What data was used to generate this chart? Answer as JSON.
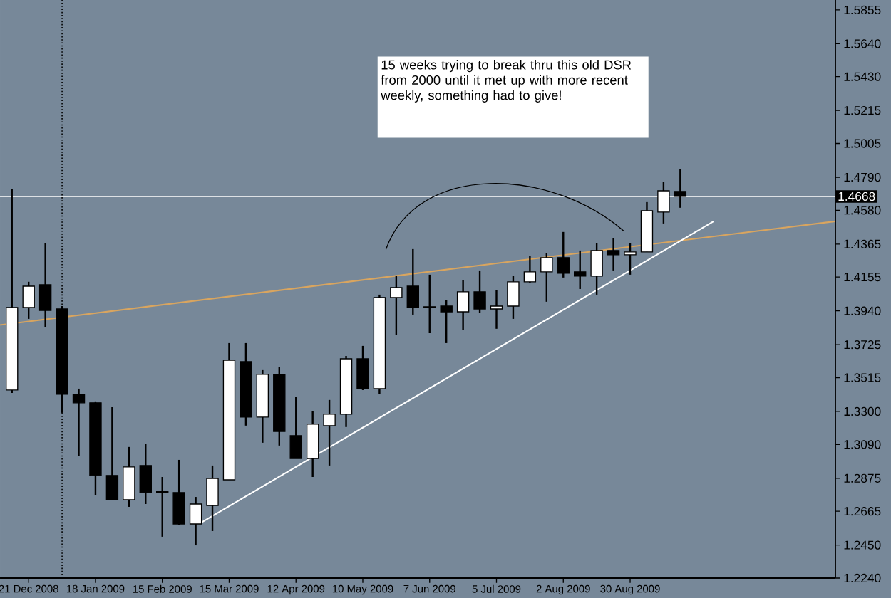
{
  "chart_data": {
    "type": "candlestick",
    "x": [
      "2008-12-14",
      "2008-12-21",
      "2008-12-28",
      "2009-01-04",
      "2009-01-11",
      "2009-01-18",
      "2009-01-25",
      "2009-02-01",
      "2009-02-08",
      "2009-02-15",
      "2009-02-22",
      "2009-03-01",
      "2009-03-08",
      "2009-03-15",
      "2009-03-22",
      "2009-03-29",
      "2009-04-05",
      "2009-04-12",
      "2009-04-19",
      "2009-04-26",
      "2009-05-03",
      "2009-05-10",
      "2009-05-17",
      "2009-05-24",
      "2009-05-31",
      "2009-06-07",
      "2009-06-14",
      "2009-06-21",
      "2009-06-28",
      "2009-07-05",
      "2009-07-12",
      "2009-07-19",
      "2009-07-26",
      "2009-08-02",
      "2009-08-09",
      "2009-08-16",
      "2009-08-23",
      "2009-08-30",
      "2009-09-06",
      "2009-09-13",
      "2009-09-20"
    ],
    "ohlc": [
      [
        1.3436,
        1.4713,
        1.3418,
        1.3961
      ],
      [
        1.3961,
        1.4125,
        1.3889,
        1.4097
      ],
      [
        1.4106,
        1.4369,
        1.3835,
        1.3943
      ],
      [
        1.3952,
        1.397,
        1.3291,
        1.3409
      ],
      [
        1.3409,
        1.3445,
        1.3019,
        1.3355
      ],
      [
        1.3355,
        1.3364,
        1.2766,
        1.2893
      ],
      [
        1.2893,
        1.3327,
        1.2738,
        1.2738
      ],
      [
        1.2738,
        1.3074,
        1.2693,
        1.2947
      ],
      [
        1.2956,
        1.3092,
        1.2711,
        1.2784
      ],
      [
        1.2784,
        1.2883,
        1.2503,
        1.279
      ],
      [
        1.2784,
        1.2992,
        1.2575,
        1.2584
      ],
      [
        1.2584,
        1.2756,
        1.2448,
        1.2711
      ],
      [
        1.2702,
        1.2956,
        1.2539,
        1.2874
      ],
      [
        1.2865,
        1.3735,
        1.2865,
        1.3626
      ],
      [
        1.3617,
        1.3735,
        1.321,
        1.3264
      ],
      [
        1.3264,
        1.3563,
        1.3101,
        1.3536
      ],
      [
        1.3536,
        1.3581,
        1.3083,
        1.3173
      ],
      [
        1.3146,
        1.3391,
        1.3001,
        1.3001
      ],
      [
        1.3001,
        1.33,
        1.2883,
        1.3219
      ],
      [
        1.321,
        1.3373,
        1.2956,
        1.3282
      ],
      [
        1.3282,
        1.3653,
        1.3201,
        1.3635
      ],
      [
        1.3635,
        1.3717,
        1.3436,
        1.3445
      ],
      [
        1.3445,
        1.4043,
        1.3409,
        1.4025
      ],
      [
        1.4025,
        1.4161,
        1.3789,
        1.4088
      ],
      [
        1.4097,
        1.4333,
        1.3916,
        1.3961
      ],
      [
        1.3966,
        1.417,
        1.3798,
        1.3961
      ],
      [
        1.397,
        1.4007,
        1.3735,
        1.3934
      ],
      [
        1.3934,
        1.4134,
        1.3817,
        1.4061
      ],
      [
        1.4061,
        1.4197,
        1.3925,
        1.3952
      ],
      [
        1.3952,
        1.407,
        1.3826,
        1.397
      ],
      [
        1.397,
        1.4161,
        1.3889,
        1.4125
      ],
      [
        1.4125,
        1.4288,
        1.4116,
        1.4188
      ],
      [
        1.4188,
        1.4306,
        1.3998,
        1.4279
      ],
      [
        1.4279,
        1.4442,
        1.4152,
        1.4179
      ],
      [
        1.4188,
        1.4324,
        1.4079,
        1.4161
      ],
      [
        1.4161,
        1.4369,
        1.4043,
        1.4324
      ],
      [
        1.4324,
        1.4405,
        1.4197,
        1.4297
      ],
      [
        1.4297,
        1.4369,
        1.417,
        1.4315
      ],
      [
        1.4315,
        1.4632,
        1.4315,
        1.4578
      ],
      [
        1.4569,
        1.4759,
        1.4496,
        1.4704
      ],
      [
        1.47,
        1.484,
        1.4596,
        1.4668
      ]
    ],
    "series": [
      {
        "type": "line",
        "color": "#d9a55f",
        "x": [
          "2008-12-09",
          "2009-11-24"
        ],
        "values": [
          1.385,
          1.451
        ]
      },
      {
        "type": "line",
        "color": "#ffffff",
        "x": [
          "2009-03-03",
          "2009-10-04"
        ],
        "values": [
          1.259,
          1.451
        ]
      }
    ],
    "xlim": [
      "2008-12-09",
      "2009-11-24"
    ],
    "xticks": [
      {
        "value": "2008-12-21",
        "label": "21 Dec 2008"
      },
      {
        "value": "2009-01-18",
        "label": "18 Jan 2009"
      },
      {
        "value": "2009-02-15",
        "label": "15 Feb 2009"
      },
      {
        "value": "2009-03-15",
        "label": "15 Mar 2009"
      },
      {
        "value": "2009-04-12",
        "label": "12 Apr 2009"
      },
      {
        "value": "2009-05-10",
        "label": "10 May 2009"
      },
      {
        "value": "2009-06-07",
        "label": "7 Jun 2009"
      },
      {
        "value": "2009-07-05",
        "label": "5 Jul 2009"
      },
      {
        "value": "2009-08-02",
        "label": "2 Aug 2009"
      },
      {
        "value": "2009-08-30",
        "label": "30 Aug 2009"
      }
    ],
    "ylim": [
      1.224,
      1.5918
    ],
    "yticks": [
      1.5855,
      {
        "value": 1.564,
        "label": "1.5640"
      },
      {
        "value": 1.543,
        "label": "1.5430"
      },
      1.5215,
      1.5005,
      {
        "value": 1.479,
        "label": "1.4790"
      },
      {
        "value": 1.458,
        "label": "1.4580"
      },
      1.4365,
      1.4155,
      {
        "value": 1.394,
        "label": "1.3940"
      },
      1.3725,
      1.3515,
      {
        "value": 1.33,
        "label": "1.3300"
      },
      {
        "value": 1.309,
        "label": "1.3090"
      },
      1.2875,
      1.2665,
      {
        "value": 1.245,
        "label": "1.2450"
      },
      {
        "value": 1.224,
        "label": "1.2240"
      }
    ],
    "ref_lines": [
      {
        "axis": "y",
        "value": 1.4668,
        "label": "1.4668",
        "color": "#ffffff"
      },
      {
        "axis": "x",
        "value": "2009-01-04",
        "color": "#000000",
        "line_style": "dotted"
      }
    ],
    "annotations": [
      "15 weeks trying to break thru this old DSR from 2000 until it met up with more recent weekly, something had to give!"
    ]
  }
}
